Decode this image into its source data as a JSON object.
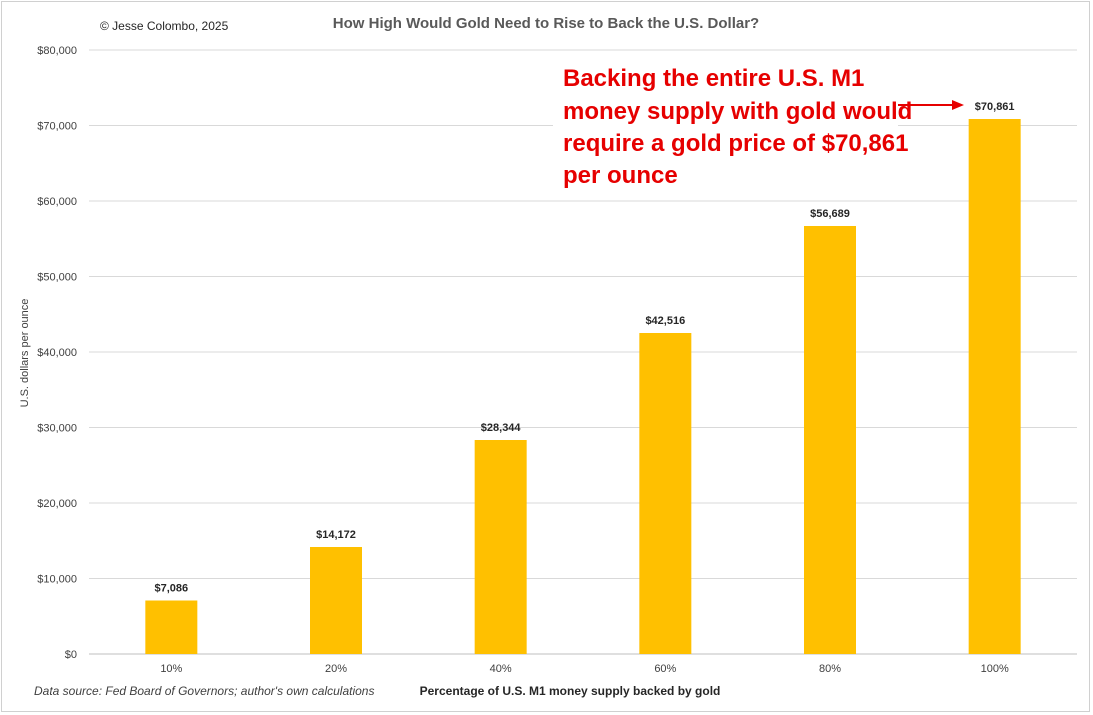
{
  "copyright": "© Jesse Colombo, 2025",
  "source_note": "Data source: Fed Board of Governors; author's own calculations",
  "annotation": {
    "lines": [
      "Backing the entire U.S. M1",
      "money supply with gold would",
      "require a gold price of $70,861",
      "per ounce"
    ]
  },
  "colors": {
    "bar": "#FFC000",
    "annotation": "#E60000",
    "grid": "#D9D9D9"
  },
  "chart_data": {
    "type": "bar",
    "title": "How High Would Gold Need to Rise to Back the U.S. Dollar?",
    "xlabel": "Percentage of U.S. M1 money supply backed by gold",
    "ylabel": "U.S. dollars per ounce",
    "categories": [
      "10%",
      "20%",
      "40%",
      "60%",
      "80%",
      "100%"
    ],
    "values": [
      7086,
      14172,
      28344,
      42516,
      56689,
      70861
    ],
    "data_labels": [
      "$7,086",
      "$14,172",
      "$28,344",
      "$42,516",
      "$56,689",
      "$70,861"
    ],
    "ylim": [
      0,
      80000
    ],
    "yticks": [
      0,
      10000,
      20000,
      30000,
      40000,
      50000,
      60000,
      70000,
      80000
    ],
    "ytick_labels": [
      "$0",
      "$10,000",
      "$20,000",
      "$30,000",
      "$40,000",
      "$50,000",
      "$60,000",
      "$70,000",
      "$80,000"
    ],
    "grid": true
  }
}
